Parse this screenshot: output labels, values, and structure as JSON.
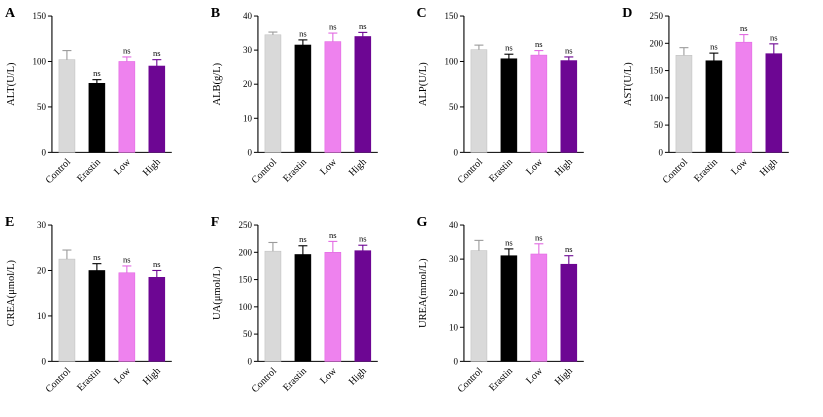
{
  "figure": {
    "background": "#ffffff",
    "ns_label": "ns",
    "ns_color": "#6b6b6b",
    "axis_color": "#000000",
    "groups": [
      {
        "label": "Control",
        "fill": "#d9d9d9",
        "edge": "#c2c2c2",
        "error_color": "#9b9b9b"
      },
      {
        "label": "Erastin",
        "fill": "#000000",
        "edge": "#000000",
        "error_color": "#000000"
      },
      {
        "label": "Low",
        "fill": "#ee82ee",
        "edge": "#e26ae2",
        "error_color": "#e26ae2"
      },
      {
        "label": "High",
        "fill": "#6d0693",
        "edge": "#6d0693",
        "error_color": "#6d0693"
      }
    ]
  },
  "chart_data": [
    {
      "panel": "A",
      "type": "bar",
      "ylabel": "ALT(U/L)",
      "ylim": [
        0,
        150
      ],
      "yticks": [
        0,
        50,
        100,
        150
      ],
      "categories": [
        "Control",
        "Erastin",
        "Low",
        "High"
      ],
      "values": [
        102,
        76,
        100,
        95
      ],
      "errors": [
        10,
        4,
        5,
        7
      ],
      "ns_flags": [
        false,
        true,
        true,
        true
      ],
      "legend": "none",
      "grid": false
    },
    {
      "panel": "B",
      "type": "bar",
      "ylabel": "ALB(g/L)",
      "ylim": [
        0,
        40
      ],
      "yticks": [
        0,
        10,
        20,
        30,
        40
      ],
      "categories": [
        "Control",
        "Erastin",
        "Low",
        "High"
      ],
      "values": [
        34.5,
        31.5,
        32.5,
        34
      ],
      "errors": [
        0.8,
        1.5,
        2.5,
        1.2
      ],
      "ns_flags": [
        false,
        true,
        true,
        true
      ],
      "legend": "none",
      "grid": false
    },
    {
      "panel": "C",
      "type": "bar",
      "ylabel": "ALP(U/L)",
      "ylim": [
        0,
        150
      ],
      "yticks": [
        0,
        50,
        100,
        150
      ],
      "categories": [
        "Control",
        "Erastin",
        "Low",
        "High"
      ],
      "values": [
        113,
        103,
        107,
        101
      ],
      "errors": [
        5,
        5,
        5,
        4
      ],
      "ns_flags": [
        false,
        true,
        true,
        true
      ],
      "legend": "none",
      "grid": false
    },
    {
      "panel": "D",
      "type": "bar",
      "ylabel": "AST(U/L)",
      "ylim": [
        0,
        250
      ],
      "yticks": [
        0,
        50,
        100,
        150,
        200,
        250
      ],
      "categories": [
        "Control",
        "Erastin",
        "Low",
        "High"
      ],
      "values": [
        178,
        168,
        202,
        181
      ],
      "errors": [
        14,
        14,
        14,
        18
      ],
      "ns_flags": [
        false,
        true,
        true,
        true
      ],
      "legend": "none",
      "grid": false
    },
    {
      "panel": "E",
      "type": "bar",
      "ylabel": "CREA(μmol/L)",
      "ylim": [
        0,
        30
      ],
      "yticks": [
        0,
        10,
        20,
        30
      ],
      "categories": [
        "Control",
        "Erastin",
        "Low",
        "High"
      ],
      "values": [
        22.5,
        20,
        19.5,
        18.5
      ],
      "errors": [
        2,
        1.5,
        1.5,
        1.5
      ],
      "ns_flags": [
        false,
        true,
        true,
        true
      ],
      "legend": "none",
      "grid": false
    },
    {
      "panel": "F",
      "type": "bar",
      "ylabel": "UA(μmol/L)",
      "ylim": [
        0,
        250
      ],
      "yticks": [
        0,
        50,
        100,
        150,
        200,
        250
      ],
      "categories": [
        "Control",
        "Erastin",
        "Low",
        "High"
      ],
      "values": [
        202,
        196,
        200,
        203
      ],
      "errors": [
        16,
        16,
        20,
        10
      ],
      "ns_flags": [
        false,
        true,
        true,
        true
      ],
      "legend": "none",
      "grid": false
    },
    {
      "panel": "G",
      "type": "bar",
      "ylabel": "UREA(mmol/L)",
      "ylim": [
        0,
        40
      ],
      "yticks": [
        0,
        10,
        20,
        30,
        40
      ],
      "categories": [
        "Control",
        "Erastin",
        "Low",
        "High"
      ],
      "values": [
        32.5,
        31,
        31.5,
        28.5
      ],
      "errors": [
        3,
        2,
        3,
        2.5
      ],
      "ns_flags": [
        false,
        true,
        true,
        true
      ],
      "legend": "none",
      "grid": false
    }
  ]
}
